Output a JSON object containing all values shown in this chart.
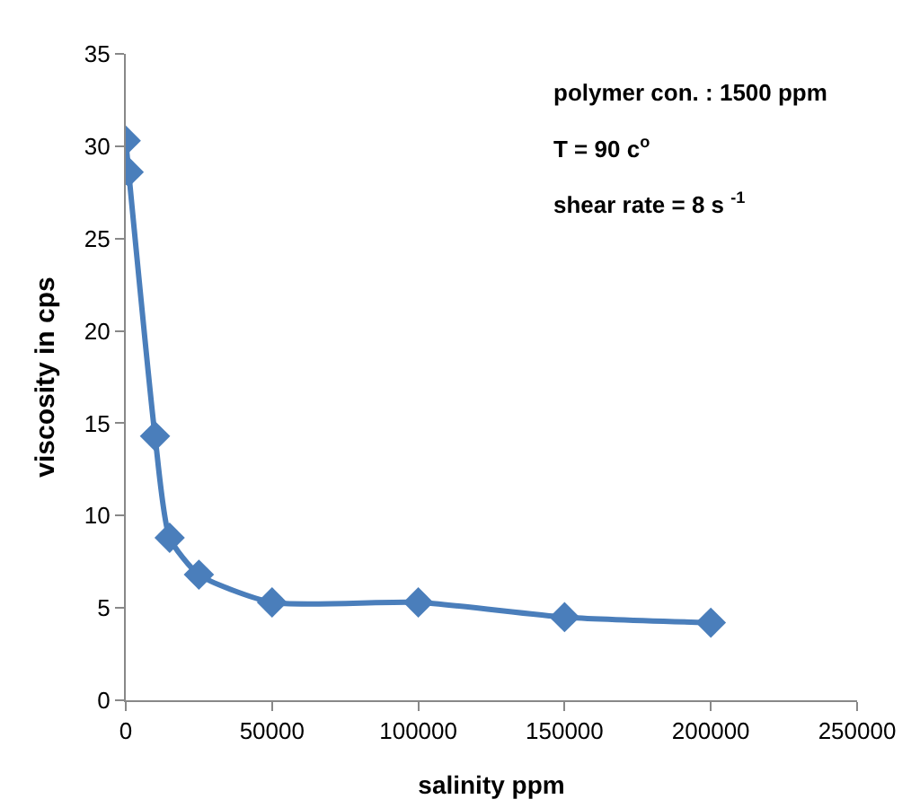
{
  "chart_data": {
    "type": "line",
    "xlabel": "salinity ppm",
    "ylabel": "viscosity in cps",
    "x": [
      0,
      1000,
      10000,
      15000,
      25000,
      50000,
      100000,
      150000,
      200000
    ],
    "series": [
      {
        "color": "#4a7ebb",
        "values": [
          30.3,
          28.6,
          14.3,
          8.8,
          6.8,
          5.3,
          5.3,
          4.5,
          4.2
        ]
      }
    ],
    "xlim": [
      0,
      250000
    ],
    "xticks": [
      0,
      50000,
      100000,
      150000,
      200000,
      250000
    ],
    "ylim": [
      0,
      35
    ],
    "yticks": [
      0,
      5,
      10,
      15,
      20,
      25,
      30,
      35
    ],
    "annotations": [
      "polymer con. : 1500 ppm",
      "T = 90 c$^{o}$",
      "shear rate = 8 s $^{-1}$"
    ],
    "marker": "diamond",
    "line_style": "solid"
  }
}
